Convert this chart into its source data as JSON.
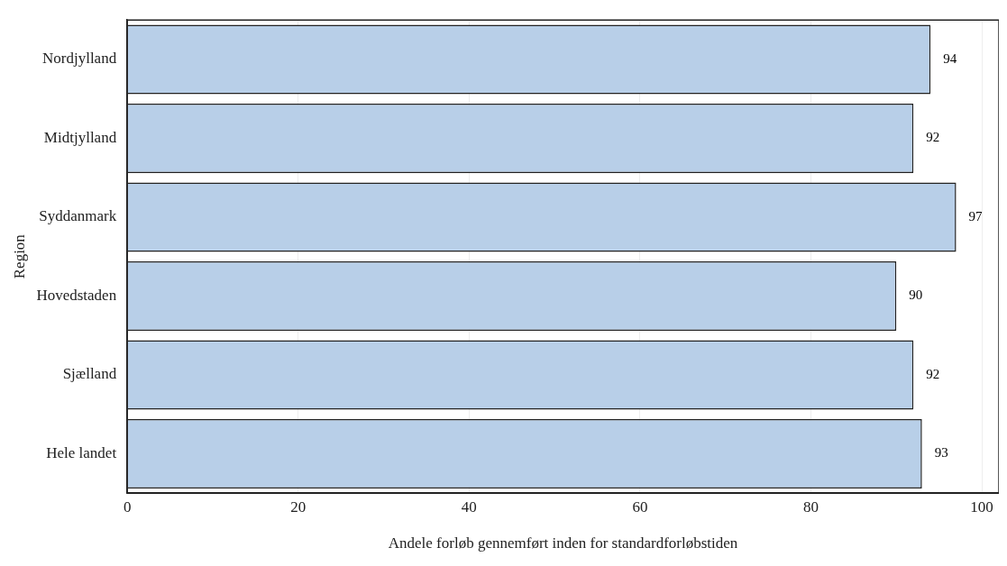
{
  "chart_data": {
    "type": "bar",
    "orientation": "horizontal",
    "xlabel": "Andele forløb gennemført inden for standardforløbstiden",
    "ylabel": "Region",
    "categories": [
      "Nordjylland",
      "Midtjylland",
      "Syddanmark",
      "Hovedstaden",
      "Sjælland",
      "Hele landet"
    ],
    "values": [
      94,
      92,
      97,
      90,
      92,
      93
    ],
    "color": "#b8cfe8",
    "xlim": [
      0,
      102
    ],
    "xticks": [
      0,
      20,
      40,
      60,
      80,
      100
    ],
    "grid": "x",
    "data_labels": true,
    "legend": false
  }
}
